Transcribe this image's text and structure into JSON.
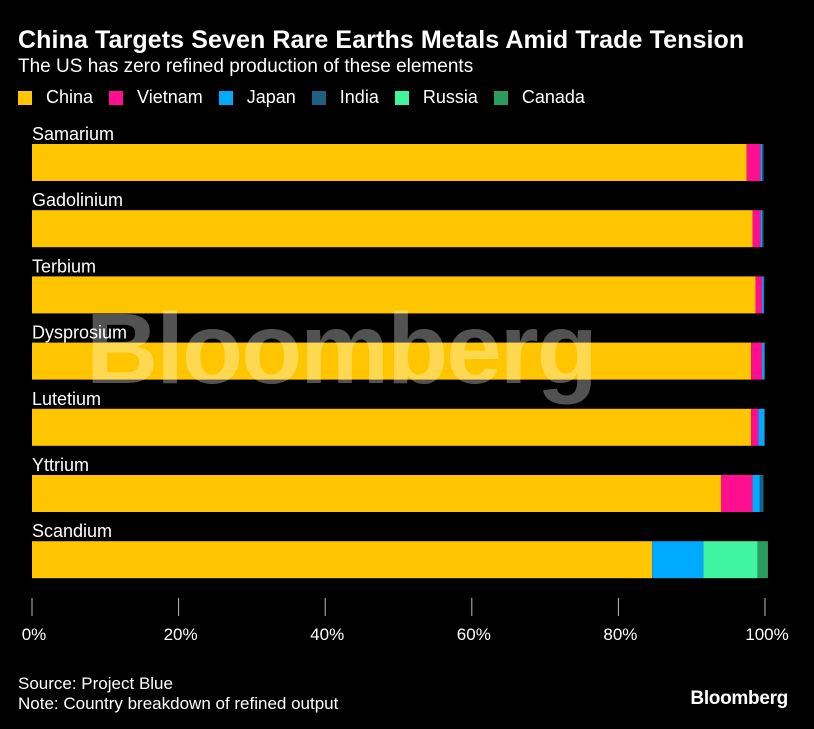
{
  "chart_data": {
    "type": "bar",
    "orientation": "horizontal",
    "stacked": true,
    "title": "China Targets Seven Rare Earths Metals Amid Trade Tension",
    "subtitle": "The US has zero refined production of these elements",
    "categories": [
      "Samarium",
      "Gadolinium",
      "Terbium",
      "Dysprosium",
      "Lutetium",
      "Yttrium",
      "Scandium"
    ],
    "series": [
      {
        "name": "China",
        "color": "#FFC600",
        "values": [
          97.5,
          98.3,
          98.7,
          98.1,
          98.1,
          94.0,
          84.6
        ]
      },
      {
        "name": "Vietnam",
        "color": "#FF0F8F",
        "values": [
          1.9,
          1.1,
          0.9,
          1.5,
          1.0,
          4.3,
          0
        ]
      },
      {
        "name": "Japan",
        "color": "#00AAFF",
        "values": [
          0.2,
          0.2,
          0.2,
          0.3,
          0.8,
          1.0,
          7.0
        ]
      },
      {
        "name": "India",
        "color": "#1F6080",
        "values": [
          0.2,
          0.2,
          0.1,
          0.1,
          0.1,
          0.5,
          0
        ]
      },
      {
        "name": "Russia",
        "color": "#3FF59F",
        "values": [
          0,
          0,
          0,
          0,
          0,
          0,
          7.4
        ]
      },
      {
        "name": "Canada",
        "color": "#2A9D5C",
        "values": [
          0,
          0,
          0,
          0,
          0,
          0,
          1.4
        ]
      }
    ],
    "xlim": [
      0,
      100
    ],
    "xticks": [
      0,
      20,
      40,
      60,
      80,
      100
    ],
    "xtick_labels": [
      "0%",
      "20%",
      "40%",
      "60%",
      "80%",
      "100%"
    ],
    "xlabel": "",
    "ylabel": "",
    "legend_position": "top-left",
    "grid": false
  },
  "watermark": "Bloomberg",
  "footer": {
    "source": "Source: Project Blue",
    "note": "Note: Country breakdown of refined output",
    "brand": "Bloomberg"
  }
}
